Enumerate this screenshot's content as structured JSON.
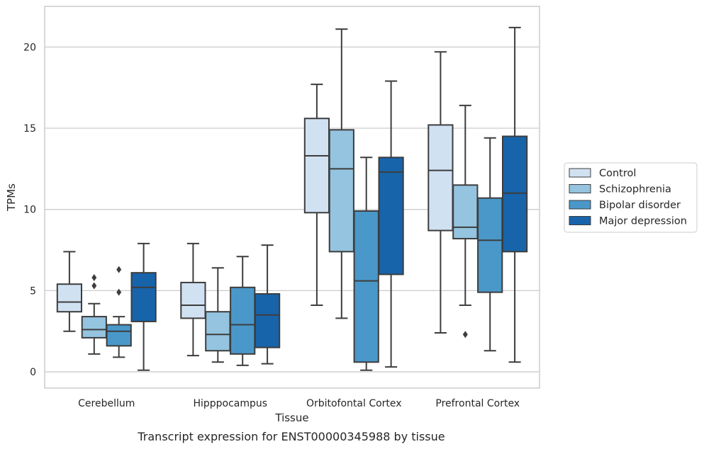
{
  "caption": "Transcript expression for ENST00000345988 by tissue",
  "chart_data": {
    "type": "box",
    "xlabel": "Tissue",
    "ylabel": "TPMs",
    "ylim": [
      -1,
      22.5
    ],
    "yticks": [
      0,
      5,
      10,
      15,
      20
    ],
    "grid": "horizontal",
    "legend_position": "right",
    "categories": [
      "Cerebellum",
      "Hipppocampus",
      "Orbitofontal Cortex",
      "Prefrontal Cortex"
    ],
    "series": [
      {
        "name": "Control",
        "color": "#d0e1f2",
        "boxes": [
          {
            "whisker_low": 2.5,
            "q1": 3.7,
            "median": 4.3,
            "q3": 5.4,
            "whisker_high": 7.4,
            "outliers": []
          },
          {
            "whisker_low": 1.0,
            "q1": 3.3,
            "median": 4.1,
            "q3": 5.5,
            "whisker_high": 7.9,
            "outliers": []
          },
          {
            "whisker_low": 4.1,
            "q1": 9.8,
            "median": 13.3,
            "q3": 15.6,
            "whisker_high": 17.7,
            "outliers": []
          },
          {
            "whisker_low": 2.4,
            "q1": 8.7,
            "median": 12.4,
            "q3": 15.2,
            "whisker_high": 19.7,
            "outliers": []
          }
        ]
      },
      {
        "name": "Schizophrenia",
        "color": "#94c4df",
        "boxes": [
          {
            "whisker_low": 1.1,
            "q1": 2.1,
            "median": 2.6,
            "q3": 3.4,
            "whisker_high": 4.2,
            "outliers": [
              5.3,
              5.8
            ]
          },
          {
            "whisker_low": 0.6,
            "q1": 1.3,
            "median": 2.3,
            "q3": 3.7,
            "whisker_high": 6.4,
            "outliers": []
          },
          {
            "whisker_low": 3.3,
            "q1": 7.4,
            "median": 12.5,
            "q3": 14.9,
            "whisker_high": 21.1,
            "outliers": []
          },
          {
            "whisker_low": 4.1,
            "q1": 8.2,
            "median": 8.9,
            "q3": 11.5,
            "whisker_high": 16.4,
            "outliers": [
              2.3
            ]
          }
        ]
      },
      {
        "name": "Bipolar disorder",
        "color": "#4a98c9",
        "boxes": [
          {
            "whisker_low": 0.9,
            "q1": 1.6,
            "median": 2.5,
            "q3": 2.9,
            "whisker_high": 3.4,
            "outliers": [
              4.9,
              6.3
            ]
          },
          {
            "whisker_low": 0.4,
            "q1": 1.1,
            "median": 2.9,
            "q3": 5.2,
            "whisker_high": 7.1,
            "outliers": []
          },
          {
            "whisker_low": 0.1,
            "q1": 0.6,
            "median": 5.6,
            "q3": 9.9,
            "whisker_high": 13.2,
            "outliers": []
          },
          {
            "whisker_low": 1.3,
            "q1": 4.9,
            "median": 8.1,
            "q3": 10.7,
            "whisker_high": 14.4,
            "outliers": []
          }
        ]
      },
      {
        "name": "Major depression",
        "color": "#1764ab",
        "boxes": [
          {
            "whisker_low": 0.1,
            "q1": 3.1,
            "median": 5.2,
            "q3": 6.1,
            "whisker_high": 7.9,
            "outliers": []
          },
          {
            "whisker_low": 0.5,
            "q1": 1.5,
            "median": 3.5,
            "q3": 4.8,
            "whisker_high": 7.8,
            "outliers": []
          },
          {
            "whisker_low": 0.3,
            "q1": 6.0,
            "median": 12.3,
            "q3": 13.2,
            "whisker_high": 17.9,
            "outliers": []
          },
          {
            "whisker_low": 0.6,
            "q1": 7.4,
            "median": 11.0,
            "q3": 14.5,
            "whisker_high": 21.2,
            "outliers": []
          }
        ]
      }
    ]
  }
}
